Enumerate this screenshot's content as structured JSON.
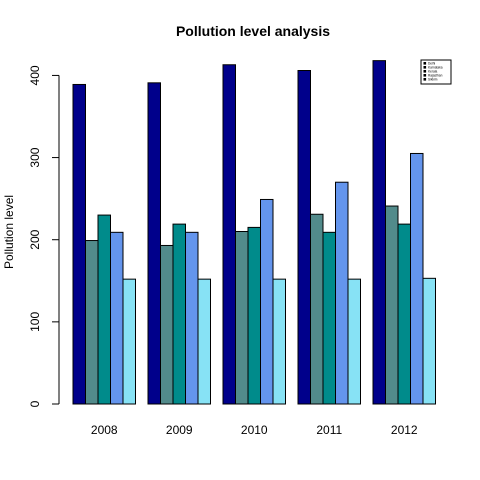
{
  "chart_data": {
    "type": "bar",
    "title": "Pollution level analysis",
    "xlabel": "",
    "ylabel": "Pollution level",
    "categories": [
      "2008",
      "2009",
      "2010",
      "2011",
      "2012"
    ],
    "ylim": [
      0,
      420
    ],
    "yticks": [
      0,
      100,
      200,
      300,
      400
    ],
    "grid": false,
    "legend_position": "top-right",
    "series": [
      {
        "name": "Delhi",
        "color": "#00008B",
        "values": [
          389,
          391,
          413,
          406,
          418
        ]
      },
      {
        "name": "Karnataka",
        "color": "#528B8B",
        "values": [
          199,
          193,
          210,
          231,
          241
        ]
      },
      {
        "name": "Kerala",
        "color": "#008B8B",
        "values": [
          230,
          219,
          215,
          209,
          219
        ]
      },
      {
        "name": "Rajasthan",
        "color": "#6495ED",
        "values": [
          209,
          209,
          249,
          270,
          305
        ]
      },
      {
        "name": "Sikkim",
        "color": "#87E2F5",
        "values": [
          152,
          152,
          152,
          152,
          153
        ]
      }
    ]
  }
}
